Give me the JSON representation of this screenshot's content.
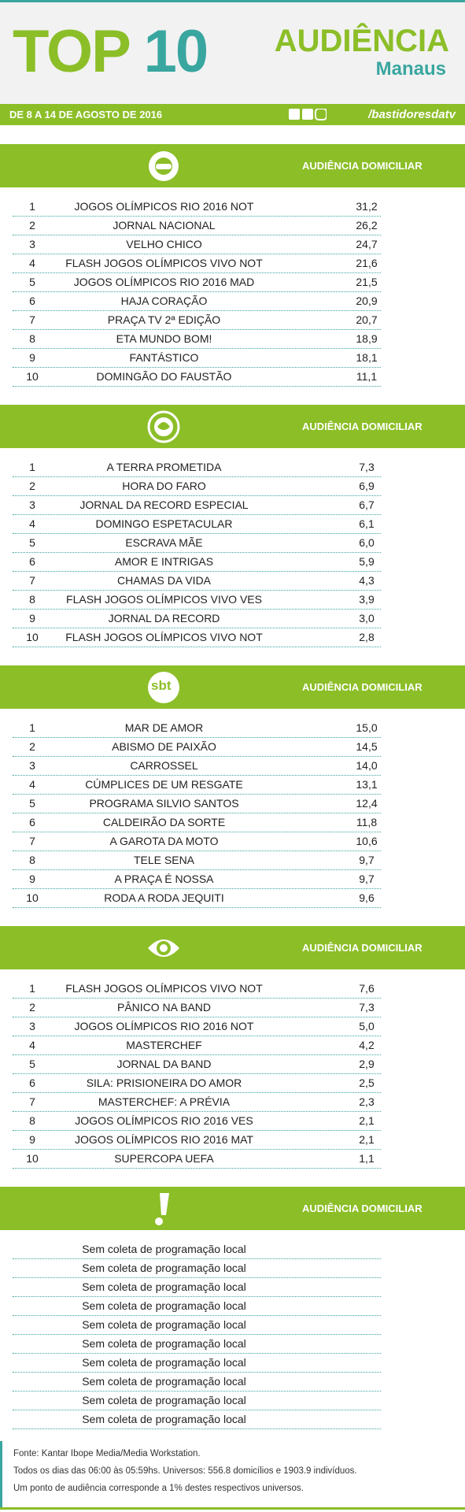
{
  "header": {
    "title_1": "TOP",
    "title_2": "10",
    "brand": "AUDIÊNCIA",
    "city": "Manaus",
    "date": "DE 8 A 14 DE AGOSTO DE 2016",
    "social": "/bastidoresdatv"
  },
  "sections": [
    {
      "column": "AUDIÊNCIA DOMICILIAR",
      "rows": [
        [
          1,
          "JOGOS OLÍMPICOS RIO 2016 NOT",
          "31,2"
        ],
        [
          2,
          "JORNAL NACIONAL",
          "26,2"
        ],
        [
          3,
          "VELHO CHICO",
          "24,7"
        ],
        [
          4,
          "FLASH JOGOS OLÍMPICOS VIVO NOT",
          "21,6"
        ],
        [
          5,
          "JOGOS OLÍMPICOS RIO 2016 MAD",
          "21,5"
        ],
        [
          6,
          "HAJA CORAÇÃO",
          "20,9"
        ],
        [
          7,
          "PRAÇA TV 2ª EDIÇÃO",
          "20,7"
        ],
        [
          8,
          "ETA MUNDO BOM!",
          "18,9"
        ],
        [
          9,
          "FANTÁSTICO",
          "18,1"
        ],
        [
          10,
          "DOMINGÃO DO FAUSTÃO",
          "11,1"
        ]
      ]
    },
    {
      "column": "AUDIÊNCIA DOMICILIAR",
      "rows": [
        [
          1,
          "A TERRA PROMETIDA",
          "7,3"
        ],
        [
          2,
          "HORA DO FARO",
          "6,9"
        ],
        [
          3,
          "JORNAL DA RECORD ESPECIAL",
          "6,7"
        ],
        [
          4,
          "DOMINGO ESPETACULAR",
          "6,1"
        ],
        [
          5,
          "ESCRAVA MÃE",
          "6,0"
        ],
        [
          6,
          "AMOR E INTRIGAS",
          "5,9"
        ],
        [
          7,
          "CHAMAS DA VIDA",
          "4,3"
        ],
        [
          8,
          "FLASH JOGOS OLÍMPICOS VIVO VES",
          "3,9"
        ],
        [
          9,
          "JORNAL DA RECORD",
          "3,0"
        ],
        [
          10,
          "FLASH JOGOS OLÍMPICOS VIVO NOT",
          "2,8"
        ]
      ]
    },
    {
      "column": "AUDIÊNCIA DOMICILIAR",
      "logo_text": "sbt",
      "rows": [
        [
          1,
          "MAR DE AMOR",
          "15,0"
        ],
        [
          2,
          "ABISMO DE PAIXÃO",
          "14,5"
        ],
        [
          3,
          "CARROSSEL",
          "14,0"
        ],
        [
          4,
          "CÚMPLICES DE UM RESGATE",
          "13,1"
        ],
        [
          5,
          "PROGRAMA SILVIO SANTOS",
          "12,4"
        ],
        [
          6,
          "CALDEIRÃO DA SORTE",
          "11,8"
        ],
        [
          7,
          "A GAROTA DA MOTO",
          "10,6"
        ],
        [
          8,
          "TELE SENA",
          "9,7"
        ],
        [
          9,
          "A PRAÇA É NOSSA",
          "9,7"
        ],
        [
          10,
          "RODA A RODA JEQUITI",
          "9,6"
        ]
      ]
    },
    {
      "column": "AUDIÊNCIA DOMICILIAR",
      "rows": [
        [
          1,
          "FLASH JOGOS OLÍMPICOS VIVO NOT",
          "7,6"
        ],
        [
          2,
          "PÂNICO NA BAND",
          "7,3"
        ],
        [
          3,
          "JOGOS OLÍMPICOS RIO 2016 NOT",
          "5,0"
        ],
        [
          4,
          "MASTERCHEF",
          "4,2"
        ],
        [
          5,
          "JORNAL DA BAND",
          "2,9"
        ],
        [
          6,
          "SILA: PRISIONEIRA DO AMOR",
          "2,5"
        ],
        [
          7,
          "MASTERCHEF: A PRÉVIA",
          "2,3"
        ],
        [
          8,
          "JOGOS OLÍMPICOS RIO 2016 VES",
          "2,1"
        ],
        [
          9,
          "JOGOS OLÍMPICOS RIO 2016 MAT",
          "2,1"
        ],
        [
          10,
          "SUPERCOPA UEFA",
          "1,1"
        ]
      ]
    },
    {
      "column": "AUDIÊNCIA DOMICILIAR",
      "rows": [
        [
          "Sem coleta de programação local"
        ],
        [
          "Sem coleta de programação local"
        ],
        [
          "Sem coleta de programação local"
        ],
        [
          "Sem coleta de programação local"
        ],
        [
          "Sem coleta de programação local"
        ],
        [
          "Sem coleta de programação local"
        ],
        [
          "Sem coleta de programação local"
        ],
        [
          "Sem coleta de programação local"
        ],
        [
          "Sem coleta de programação local"
        ],
        [
          "Sem coleta de programação local"
        ]
      ]
    }
  ],
  "footer": [
    "Fonte: Kantar Ibope Media/Media Workstation.",
    "Todos os dias das 06:00 às 05:59hs. Universos: 556.8 domicílios e 1903.9 indivíduos.",
    "Um ponto de audiência corresponde a 1% destes respectivos universos."
  ]
}
